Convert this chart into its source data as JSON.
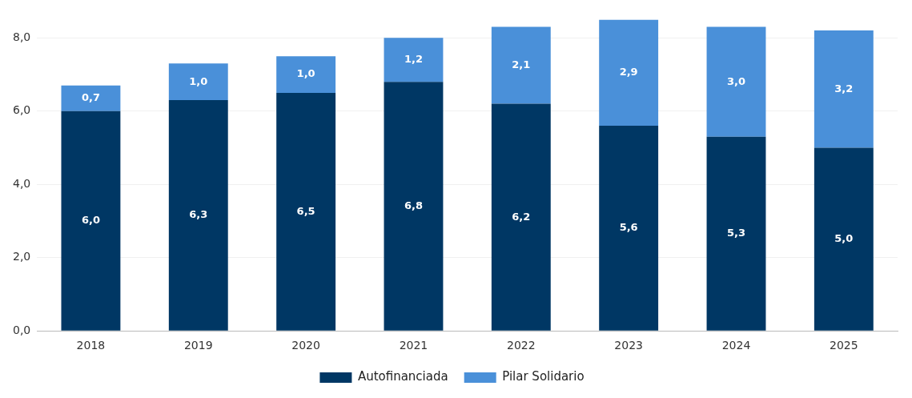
{
  "chart_data": {
    "type": "bar",
    "stacked": true,
    "categories": [
      "2018",
      "2019",
      "2020",
      "2021",
      "2022",
      "2023",
      "2024",
      "2025"
    ],
    "series": [
      {
        "name": "Autofinanciada",
        "color": "#003764",
        "values": [
          6.0,
          6.3,
          6.5,
          6.8,
          6.2,
          5.6,
          5.3,
          5.0
        ],
        "value_labels": [
          "6,0",
          "6,3",
          "6,5",
          "6,8",
          "6,2",
          "5,6",
          "5,3",
          "5,0"
        ]
      },
      {
        "name": "Pilar Solidario",
        "color": "#4a90d9",
        "values": [
          0.7,
          1.0,
          1.0,
          1.2,
          2.1,
          2.9,
          3.0,
          3.2
        ],
        "value_labels": [
          "0,7",
          "1,0",
          "1,0",
          "1,2",
          "2,1",
          "2,9",
          "3,0",
          "3,2"
        ]
      }
    ],
    "ylim": [
      0,
      8.5
    ],
    "yticks": [
      {
        "value": 0,
        "label": "0,0"
      },
      {
        "value": 2,
        "label": "2,0"
      },
      {
        "value": 4,
        "label": "4,0"
      },
      {
        "value": 6,
        "label": "6,0"
      },
      {
        "value": 8,
        "label": "8,0"
      }
    ],
    "grid": "y",
    "legend": "bottom"
  }
}
